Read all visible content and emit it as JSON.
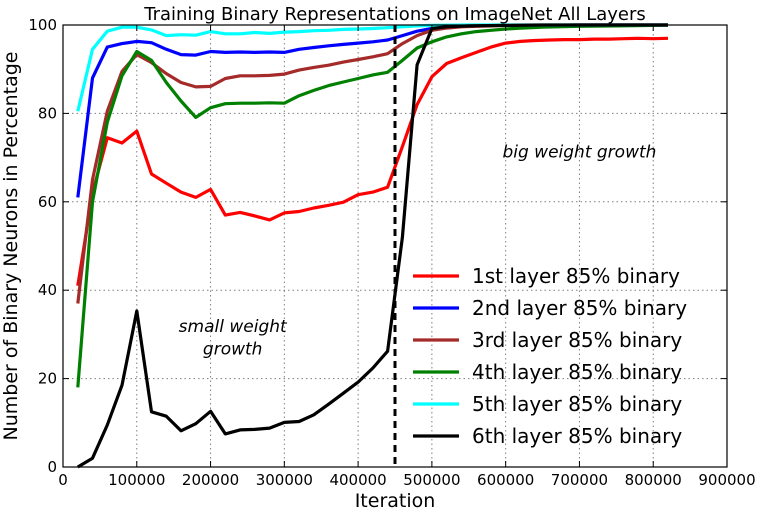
{
  "chart_data": {
    "type": "line",
    "title": "Training Binary Representations on ImageNet All Layers",
    "xlabel": "Iteration",
    "ylabel": "Number of Binary Neurons in Percentage",
    "xlim": [
      0,
      900000
    ],
    "ylim": [
      0,
      100
    ],
    "xticks": [
      0,
      100000,
      200000,
      300000,
      400000,
      500000,
      600000,
      700000,
      800000,
      900000
    ],
    "yticks": [
      0,
      20,
      40,
      60,
      80,
      100
    ],
    "grid": true,
    "legend_position": "lower-right",
    "vline": {
      "x": 450000,
      "style": "dashed",
      "color": "#000000"
    },
    "annotations": [
      {
        "text": "big weight growth",
        "x": 700000,
        "y": 70
      },
      {
        "text": "small weight",
        "x": 230000,
        "y": 30.5
      },
      {
        "text": "growth",
        "x": 230000,
        "y": 25.5
      }
    ],
    "series": [
      {
        "name": "1st layer 85% binary",
        "color": "#ff0000",
        "x": [
          20000,
          40000,
          60000,
          80000,
          100000,
          120000,
          140000,
          160000,
          180000,
          200000,
          220000,
          240000,
          260000,
          280000,
          300000,
          320000,
          340000,
          360000,
          380000,
          400000,
          420000,
          440000,
          460000,
          480000,
          500000,
          520000,
          540000,
          560000,
          580000,
          600000,
          620000,
          640000,
          660000,
          680000,
          700000,
          720000,
          740000,
          760000,
          780000,
          800000,
          820000
        ],
        "values": [
          41,
          62,
          74.5,
          73.3,
          76,
          66.3,
          64.2,
          62.2,
          61,
          62.8,
          57,
          57.6,
          56.8,
          55.9,
          57.5,
          57.8,
          58.6,
          59.2,
          59.9,
          61.6,
          62.2,
          63.3,
          72.5,
          82,
          88.3,
          91.3,
          92.6,
          93.8,
          95,
          95.9,
          96.3,
          96.5,
          96.6,
          96.7,
          96.7,
          96.8,
          96.8,
          96.9,
          97,
          96.9,
          97
        ]
      },
      {
        "name": "2nd layer 85% binary",
        "color": "#0000ff",
        "x": [
          20000,
          40000,
          60000,
          80000,
          100000,
          120000,
          140000,
          160000,
          180000,
          200000,
          220000,
          240000,
          260000,
          280000,
          300000,
          320000,
          340000,
          360000,
          380000,
          400000,
          420000,
          440000,
          460000,
          480000,
          500000,
          520000,
          540000,
          560000,
          580000,
          600000,
          650000,
          700000,
          750000,
          800000,
          820000
        ],
        "values": [
          61,
          88,
          95,
          95.8,
          96.3,
          96,
          94.5,
          93.3,
          93.2,
          94,
          93.8,
          93.9,
          93.8,
          93.9,
          93.8,
          94.5,
          94.9,
          95.3,
          95.6,
          95.9,
          96.2,
          96.6,
          97.6,
          98.6,
          99.2,
          99.5,
          99.7,
          99.8,
          99.9,
          99.9,
          99.9,
          100,
          100,
          100,
          100
        ]
      },
      {
        "name": "3rd layer 85% binary",
        "color": "#a52a2a",
        "x": [
          20000,
          40000,
          60000,
          80000,
          100000,
          120000,
          140000,
          160000,
          180000,
          200000,
          220000,
          240000,
          260000,
          280000,
          300000,
          320000,
          340000,
          360000,
          380000,
          400000,
          420000,
          440000,
          460000,
          480000,
          500000,
          520000,
          540000,
          560000,
          580000,
          600000,
          650000,
          700000,
          750000,
          800000,
          820000
        ],
        "values": [
          37,
          65,
          80.5,
          89.5,
          93.3,
          91.5,
          89,
          87,
          86,
          86.1,
          87.9,
          88.5,
          88.5,
          88.6,
          88.9,
          89.8,
          90.4,
          90.9,
          91.6,
          92.2,
          92.8,
          93.5,
          95.8,
          97.6,
          98.8,
          99.3,
          99.6,
          99.7,
          99.8,
          99.9,
          99.9,
          100,
          100,
          100,
          100
        ]
      },
      {
        "name": "4th layer 85% binary",
        "color": "#008000",
        "x": [
          20000,
          40000,
          60000,
          80000,
          100000,
          120000,
          140000,
          160000,
          180000,
          200000,
          220000,
          240000,
          260000,
          280000,
          300000,
          320000,
          340000,
          360000,
          380000,
          400000,
          420000,
          440000,
          460000,
          480000,
          500000,
          520000,
          540000,
          560000,
          580000,
          600000,
          620000,
          650000,
          700000,
          750000,
          800000,
          820000
        ],
        "values": [
          18,
          60,
          78,
          88.5,
          94,
          92,
          87,
          82.8,
          79.1,
          81.3,
          82.2,
          82.3,
          82.3,
          82.4,
          82.3,
          84,
          85.2,
          86.3,
          87.1,
          87.9,
          88.7,
          89.3,
          92,
          94.8,
          96.2,
          97.3,
          98,
          98.5,
          98.8,
          99.1,
          99.3,
          99.5,
          99.7,
          99.8,
          99.9,
          100
        ]
      },
      {
        "name": "5th layer 85% binary",
        "color": "#00ffff",
        "x": [
          20000,
          40000,
          60000,
          80000,
          100000,
          120000,
          140000,
          160000,
          180000,
          200000,
          220000,
          240000,
          260000,
          280000,
          300000,
          320000,
          340000,
          360000,
          380000,
          400000,
          420000,
          440000,
          460000,
          480000,
          500000,
          550000,
          600000,
          650000,
          700000,
          750000,
          800000,
          820000
        ],
        "values": [
          80.5,
          94.5,
          98.6,
          99.5,
          99.5,
          98.9,
          97.6,
          97.8,
          97.7,
          98.5,
          98,
          98,
          98.3,
          98.1,
          98.4,
          98.5,
          98.7,
          98.8,
          99,
          99.1,
          99.2,
          99.4,
          99.6,
          99.8,
          99.9,
          100,
          100,
          100,
          100,
          100,
          100,
          100
        ]
      },
      {
        "name": "6th layer 85% binary",
        "color": "#000000",
        "x": [
          20000,
          40000,
          60000,
          80000,
          100000,
          120000,
          140000,
          160000,
          180000,
          200000,
          220000,
          240000,
          260000,
          280000,
          300000,
          320000,
          340000,
          360000,
          380000,
          400000,
          420000,
          440000,
          460000,
          480000,
          500000,
          520000,
          550000,
          600000,
          650000,
          700000,
          750000,
          800000,
          820000
        ],
        "values": [
          0,
          2,
          9.5,
          18.5,
          35.3,
          12.5,
          11.5,
          8.2,
          9.8,
          12.6,
          7.5,
          8.4,
          8.5,
          8.8,
          10.1,
          10.3,
          11.8,
          14.2,
          16.7,
          19.2,
          22.4,
          26.2,
          52,
          91,
          99.2,
          99.6,
          99.8,
          99.9,
          100,
          100,
          100,
          100,
          100
        ]
      }
    ]
  }
}
